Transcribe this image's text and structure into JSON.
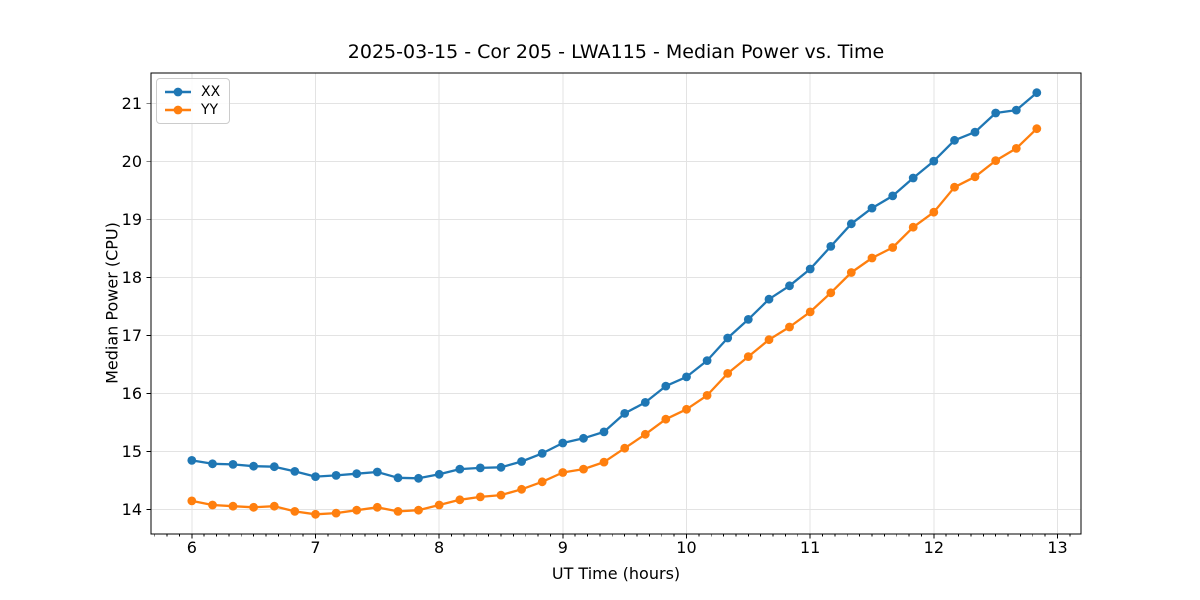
{
  "chart_data": {
    "type": "line",
    "title": "2025-03-15 - Cor 205 - LWA115 - Median Power vs. Time",
    "xlabel": "UT Time (hours)",
    "ylabel": "Median Power (CPU)",
    "xlim": [
      5.67,
      13.19
    ],
    "ylim": [
      13.58,
      21.53
    ],
    "xticks": [
      6,
      7,
      8,
      9,
      10,
      11,
      12,
      13
    ],
    "yticks": [
      14,
      15,
      16,
      17,
      18,
      19,
      20,
      21
    ],
    "x_minor_tick_step": 0.1,
    "grid": true,
    "grid_color": "#e3e3e3",
    "legend_position": "upper left",
    "x": [
      6.0,
      6.167,
      6.333,
      6.5,
      6.667,
      6.833,
      7.0,
      7.167,
      7.333,
      7.5,
      7.667,
      7.833,
      8.0,
      8.167,
      8.333,
      8.5,
      8.667,
      8.833,
      9.0,
      9.167,
      9.333,
      9.5,
      9.667,
      9.833,
      10.0,
      10.167,
      10.333,
      10.5,
      10.667,
      10.833,
      11.0,
      11.167,
      11.333,
      11.5,
      11.667,
      11.833,
      12.0,
      12.167,
      12.333,
      12.5,
      12.667,
      12.833
    ],
    "series": [
      {
        "name": "XX",
        "color": "#1f77b4",
        "values": [
          14.85,
          14.79,
          14.78,
          14.75,
          14.74,
          14.66,
          14.57,
          14.59,
          14.62,
          14.65,
          14.55,
          14.54,
          14.61,
          14.7,
          14.72,
          14.73,
          14.83,
          14.97,
          15.15,
          15.23,
          15.34,
          15.66,
          15.85,
          16.13,
          16.29,
          16.57,
          16.96,
          17.28,
          17.63,
          17.86,
          18.15,
          18.54,
          18.93,
          19.2,
          19.41,
          19.72,
          20.01,
          20.37,
          20.51,
          20.84,
          20.89,
          21.19
        ]
      },
      {
        "name": "YY",
        "color": "#ff7f0e",
        "values": [
          14.15,
          14.08,
          14.06,
          14.04,
          14.06,
          13.97,
          13.92,
          13.94,
          13.99,
          14.04,
          13.97,
          13.99,
          14.08,
          14.17,
          14.22,
          14.25,
          14.35,
          14.48,
          14.64,
          14.7,
          14.82,
          15.06,
          15.3,
          15.56,
          15.73,
          15.97,
          16.35,
          16.64,
          16.93,
          17.15,
          17.41,
          17.74,
          18.09,
          18.34,
          18.52,
          18.87,
          19.13,
          19.56,
          19.74,
          20.02,
          20.23,
          20.57
        ]
      }
    ]
  }
}
